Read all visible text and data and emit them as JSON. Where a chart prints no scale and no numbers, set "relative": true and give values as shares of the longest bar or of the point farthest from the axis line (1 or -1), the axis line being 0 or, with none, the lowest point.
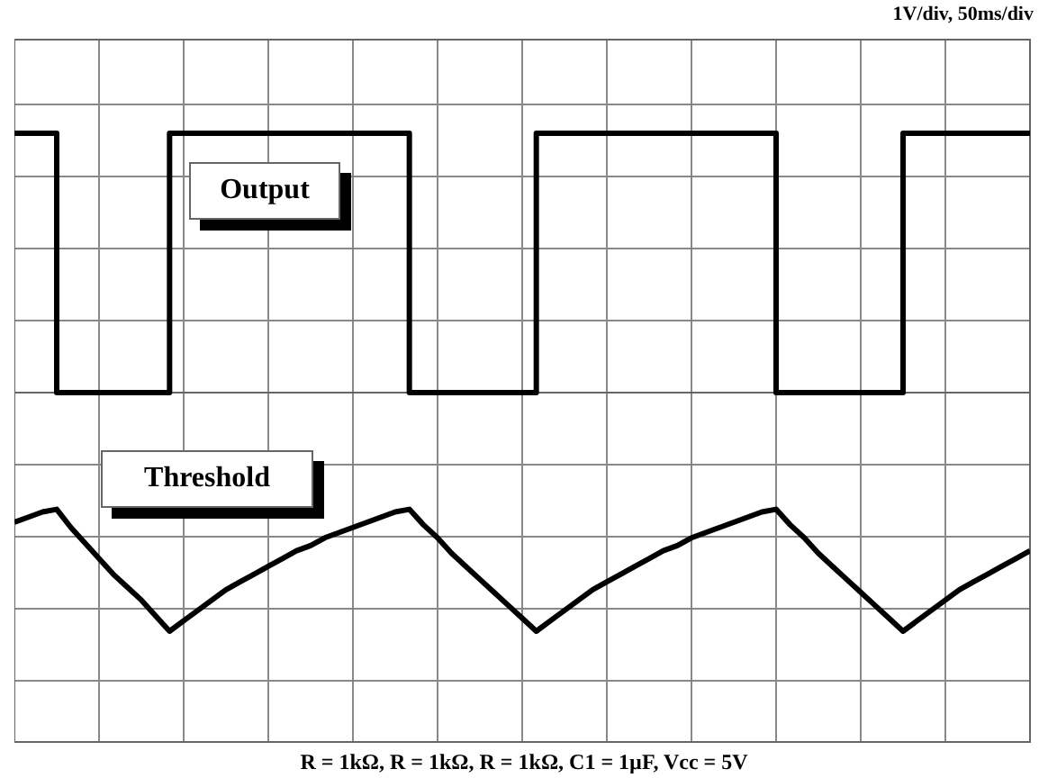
{
  "chart_data": {
    "type": "line",
    "relative": true,
    "grid": true,
    "marker": "none",
    "line_style": "solid",
    "annotations": [
      "1V/div, 50ms/div",
      "R = 1kΩ, R = 1kΩ, R = 1kΩ, C1 = 1µF, Vcc = 5V"
    ],
    "categories": [
      null,
      null,
      null,
      null,
      null,
      null,
      null,
      null,
      null,
      null,
      null,
      null,
      null,
      null,
      null,
      null,
      null,
      null,
      null,
      null,
      null,
      null,
      null,
      null,
      null,
      null,
      null,
      null,
      null,
      null,
      null,
      null,
      null,
      null,
      null,
      null,
      null,
      null,
      null,
      null,
      null,
      null,
      null,
      null,
      null,
      null,
      null,
      null,
      null,
      null,
      null,
      null,
      null,
      null,
      null,
      null,
      null,
      null,
      null,
      null,
      null,
      null,
      null,
      null,
      null,
      null,
      null,
      null,
      null,
      null,
      null,
      null,
      null
    ],
    "series": [
      {
        "name": "Output",
        "type": "step",
        "color": "#000000",
        "values": [
          1,
          1,
          1,
          0,
          0,
          0,
          0,
          0,
          0,
          0,
          0,
          1,
          1,
          1,
          1,
          1,
          1,
          1,
          1,
          1,
          1,
          1,
          1,
          1,
          1,
          1,
          1,
          1,
          0,
          0,
          0,
          0,
          0,
          0,
          0,
          0,
          0,
          1,
          1,
          1,
          1,
          1,
          1,
          1,
          1,
          1,
          1,
          1,
          1,
          1,
          1,
          1,
          1,
          1,
          0,
          0,
          0,
          0,
          0,
          0,
          0,
          0,
          0,
          1,
          1,
          1,
          1,
          1,
          1,
          1,
          1,
          1,
          1
        ]
      },
      {
        "name": "Threshold",
        "color": "#000000",
        "values": [
          -0.5,
          -0.48,
          -0.46,
          -0.45,
          -0.52,
          -0.58,
          -0.64,
          -0.7,
          -0.75,
          -0.8,
          -0.86,
          -0.92,
          -0.88,
          -0.84,
          -0.8,
          -0.76,
          -0.73,
          -0.7,
          -0.67,
          -0.64,
          -0.61,
          -0.59,
          -0.56,
          -0.54,
          -0.52,
          -0.5,
          -0.48,
          -0.46,
          -0.45,
          -0.51,
          -0.56,
          -0.62,
          -0.67,
          -0.72,
          -0.77,
          -0.82,
          -0.87,
          -0.92,
          -0.88,
          -0.84,
          -0.8,
          -0.76,
          -0.73,
          -0.7,
          -0.67,
          -0.64,
          -0.61,
          -0.59,
          -0.56,
          -0.54,
          -0.52,
          -0.5,
          -0.48,
          -0.46,
          -0.45,
          -0.51,
          -0.56,
          -0.62,
          -0.67,
          -0.72,
          -0.77,
          -0.82,
          -0.87,
          -0.92,
          -0.88,
          -0.84,
          -0.8,
          -0.76,
          -0.73,
          -0.7,
          -0.67,
          -0.64,
          -0.61
        ]
      }
    ]
  }
}
